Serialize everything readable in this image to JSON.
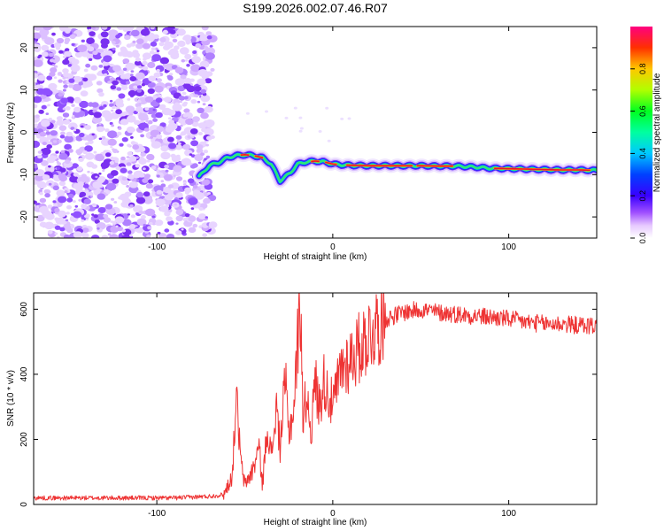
{
  "title": "S199.2026.002.07.46.R07",
  "chart_data": [
    {
      "type": "heatmap",
      "name": "spectrogram",
      "xlabel": "Height of straight line (km)",
      "ylabel": "Frequency (Hz)",
      "xlim": [
        -170,
        150
      ],
      "ylim": [
        -25,
        25
      ],
      "xticks": [
        -100,
        0,
        100
      ],
      "yticks": [
        -20,
        -10,
        0,
        10,
        20
      ],
      "noise_region_x": [
        -170,
        -68
      ],
      "track": {
        "x": [
          -76,
          -70,
          -65,
          -60,
          -55,
          -50,
          -45,
          -40,
          -35,
          -30,
          -27,
          -24,
          -20,
          -15,
          -10,
          -5,
          0,
          5,
          10,
          20,
          30,
          40,
          50,
          60,
          70,
          80,
          90,
          100,
          110,
          120,
          130,
          140,
          150
        ],
        "frequency": [
          -10.5,
          -7.8,
          -7.2,
          -6.0,
          -5.5,
          -5.3,
          -5.5,
          -6.0,
          -7.5,
          -11.5,
          -10.5,
          -9.5,
          -7.5,
          -7.0,
          -6.8,
          -7.0,
          -7.5,
          -7.7,
          -7.8,
          -7.9,
          -7.9,
          -7.9,
          -7.9,
          -8.0,
          -8.0,
          -8.2,
          -8.5,
          -8.6,
          -8.7,
          -8.8,
          -8.9,
          -8.9,
          -9.0
        ]
      },
      "colorbar": {
        "label": "Normalized spectral amplitude",
        "range": [
          0.0,
          1.0
        ],
        "ticks": [
          "0.0",
          "0.2",
          "0.4",
          "0.6",
          "0.8"
        ],
        "tick_values": [
          0.0,
          0.2,
          0.4,
          0.6,
          0.8
        ]
      }
    },
    {
      "type": "line",
      "name": "snr",
      "xlabel": "Height of straight line (km)",
      "ylabel": "SNR (10 * v/v)",
      "xlim": [
        -170,
        150
      ],
      "ylim": [
        0,
        650
      ],
      "xticks": [
        -100,
        0,
        100
      ],
      "yticks": [
        0,
        200,
        400,
        600
      ],
      "color": "#ee3333",
      "series": {
        "x": [
          -170,
          -150,
          -120,
          -90,
          -70,
          -62,
          -57,
          -55,
          -52,
          -50,
          -45,
          -42,
          -40,
          -37,
          -35,
          -32,
          -30,
          -27,
          -25,
          -22,
          -20,
          -18,
          -17,
          -15,
          -12,
          -10,
          -8,
          -5,
          0,
          5,
          10,
          15,
          20,
          25,
          30,
          40,
          50,
          60,
          70,
          80,
          90,
          100,
          110,
          120,
          130,
          140,
          150
        ],
        "y": [
          20,
          20,
          20,
          20,
          25,
          30,
          90,
          340,
          120,
          60,
          110,
          180,
          60,
          250,
          140,
          300,
          170,
          380,
          220,
          300,
          500,
          620,
          250,
          340,
          230,
          390,
          300,
          380,
          300,
          420,
          450,
          480,
          520,
          550,
          570,
          590,
          600,
          590,
          585,
          580,
          575,
          570,
          560,
          555,
          555,
          550,
          550
        ]
      }
    }
  ]
}
